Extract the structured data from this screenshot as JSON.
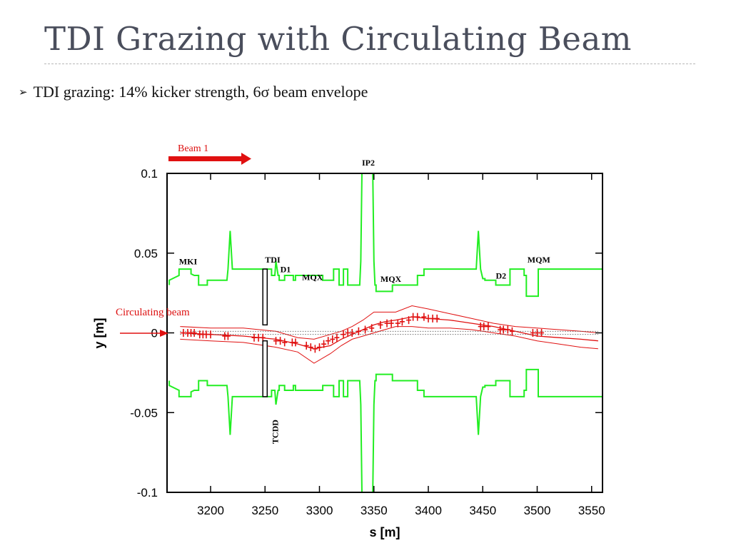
{
  "slide": {
    "title": "TDI Grazing with Circulating Beam",
    "bullet_marker": "➢",
    "bullet_text": "TDI grazing: 14% kicker strength, 6σ beam envelope"
  },
  "colors": {
    "title": "#4a4e5c",
    "aperture": "#22ee22",
    "beam": "#e01010",
    "beam_label": "#dd1111"
  },
  "chart_data": {
    "type": "line",
    "title": "",
    "xlabel": "s [m]",
    "ylabel": "y [m]",
    "xlim": [
      3160,
      3560
    ],
    "ylim": [
      -0.1,
      0.1
    ],
    "x_ticks": [
      3200,
      3250,
      3300,
      3350,
      3400,
      3450,
      3500,
      3550
    ],
    "x_tick_labels": [
      "3200",
      "3250",
      "3300",
      "3350",
      "3400",
      "3450",
      "3500",
      "3550"
    ],
    "y_ticks": [
      0.1,
      0.05,
      0,
      -0.05,
      -0.1
    ],
    "y_tick_labels": [
      "0.1",
      "0.05",
      "0",
      "-0.05",
      "-0.1"
    ],
    "grid": false,
    "element_labels": [
      {
        "text": "MKI",
        "s": 3171,
        "y": 0.043
      },
      {
        "text": "TDI",
        "s": 3250,
        "y": 0.044
      },
      {
        "text": "D1",
        "s": 3264,
        "y": 0.038
      },
      {
        "text": "MQX",
        "s": 3284,
        "y": 0.033
      },
      {
        "text": "IP2",
        "s": 3339,
        "y": 0.105
      },
      {
        "text": "MQX",
        "s": 3356,
        "y": 0.032
      },
      {
        "text": "D2",
        "s": 3462,
        "y": 0.034
      },
      {
        "text": "MQM",
        "s": 3491,
        "y": 0.044
      },
      {
        "text": "TCDD",
        "s": 3262,
        "y": -0.062,
        "rotated": true
      }
    ],
    "annotations": [
      {
        "text": "Beam 1",
        "role": "beam-direction-arrow"
      },
      {
        "text": "Circulating beam",
        "role": "injection-arrow"
      }
    ],
    "series": [
      {
        "role": "aperture-upper",
        "x": [
          3162,
          3162,
          3171,
          3171,
          3182,
          3182,
          3185,
          3189,
          3189,
          3193,
          3197,
          3197,
          3215,
          3216,
          3218,
          3220,
          3220,
          3234,
          3234,
          3246,
          3246,
          3256,
          3256,
          3259,
          3260,
          3262,
          3263,
          3263,
          3268,
          3268,
          3276,
          3276,
          3278,
          3278,
          3303,
          3303,
          3313,
          3313,
          3318,
          3318,
          3322,
          3322,
          3326,
          3326,
          3337,
          3338,
          3339,
          3349,
          3350,
          3351,
          3352,
          3352,
          3367,
          3367,
          3390,
          3390,
          3396,
          3396,
          3402,
          3402,
          3444,
          3446,
          3448,
          3450,
          3452,
          3452,
          3462,
          3462,
          3475,
          3475,
          3488,
          3488,
          3490,
          3490,
          3501,
          3501,
          3510,
          3510,
          3560
        ],
        "y": [
          0.03,
          0.033,
          0.036,
          0.04,
          0.04,
          0.037,
          0.036,
          0.036,
          0.03,
          0.03,
          0.03,
          0.033,
          0.033,
          0.04,
          0.064,
          0.04,
          0.04,
          0.04,
          0.04,
          0.04,
          0.04,
          0.04,
          0.036,
          0.036,
          0.045,
          0.036,
          0.036,
          0.033,
          0.033,
          0.036,
          0.036,
          0.033,
          0.033,
          0.036,
          0.036,
          0.033,
          0.033,
          0.04,
          0.04,
          0.03,
          0.03,
          0.04,
          0.04,
          0.03,
          0.03,
          0.045,
          0.1,
          0.1,
          0.045,
          0.03,
          0.03,
          0.026,
          0.026,
          0.03,
          0.03,
          0.036,
          0.036,
          0.04,
          0.04,
          0.04,
          0.04,
          0.064,
          0.04,
          0.034,
          0.034,
          0.033,
          0.033,
          0.03,
          0.03,
          0.04,
          0.04,
          0.036,
          0.036,
          0.023,
          0.023,
          0.04,
          0.04,
          0.04,
          0.04
        ]
      },
      {
        "role": "aperture-lower",
        "x": [
          3162,
          3162,
          3171,
          3171,
          3182,
          3182,
          3185,
          3189,
          3189,
          3193,
          3197,
          3197,
          3215,
          3216,
          3218,
          3220,
          3220,
          3234,
          3234,
          3246,
          3246,
          3256,
          3256,
          3259,
          3260,
          3262,
          3263,
          3263,
          3268,
          3268,
          3276,
          3276,
          3278,
          3278,
          3303,
          3303,
          3313,
          3313,
          3318,
          3318,
          3322,
          3322,
          3326,
          3326,
          3337,
          3338,
          3339,
          3349,
          3350,
          3351,
          3352,
          3352,
          3367,
          3367,
          3390,
          3390,
          3396,
          3396,
          3402,
          3402,
          3444,
          3446,
          3448,
          3450,
          3452,
          3452,
          3462,
          3462,
          3475,
          3475,
          3488,
          3488,
          3490,
          3490,
          3501,
          3501,
          3510,
          3510,
          3560
        ],
        "y": [
          -0.03,
          -0.033,
          -0.036,
          -0.04,
          -0.04,
          -0.037,
          -0.036,
          -0.036,
          -0.03,
          -0.03,
          -0.03,
          -0.033,
          -0.033,
          -0.04,
          -0.064,
          -0.04,
          -0.04,
          -0.04,
          -0.04,
          -0.04,
          -0.04,
          -0.04,
          -0.036,
          -0.036,
          -0.045,
          -0.036,
          -0.036,
          -0.033,
          -0.033,
          -0.036,
          -0.036,
          -0.033,
          -0.033,
          -0.036,
          -0.036,
          -0.033,
          -0.033,
          -0.04,
          -0.04,
          -0.03,
          -0.03,
          -0.04,
          -0.04,
          -0.03,
          -0.03,
          -0.045,
          -0.1,
          -0.1,
          -0.045,
          -0.03,
          -0.03,
          -0.026,
          -0.026,
          -0.03,
          -0.03,
          -0.036,
          -0.036,
          -0.04,
          -0.04,
          -0.04,
          -0.04,
          -0.064,
          -0.04,
          -0.034,
          -0.034,
          -0.033,
          -0.033,
          -0.03,
          -0.03,
          -0.04,
          -0.04,
          -0.036,
          -0.036,
          -0.023,
          -0.023,
          -0.04,
          -0.04,
          -0.04,
          -0.04
        ]
      },
      {
        "role": "beam-orbit",
        "x": [
          3172,
          3200,
          3230,
          3260,
          3280,
          3295,
          3310,
          3320,
          3330,
          3340,
          3350,
          3360,
          3370,
          3385,
          3400,
          3420,
          3440,
          3460,
          3480,
          3500,
          3520,
          3540,
          3556
        ],
        "y": [
          0.0,
          -0.001,
          -0.002,
          -0.004,
          -0.007,
          -0.01,
          -0.008,
          -0.004,
          -0.001,
          0.002,
          0.005,
          0.007,
          0.008,
          0.01,
          0.009,
          0.008,
          0.006,
          0.004,
          0.001,
          -0.002,
          -0.003,
          -0.004,
          -0.005
        ]
      },
      {
        "role": "beam-envelope-upper",
        "x": [
          3172,
          3200,
          3230,
          3260,
          3280,
          3295,
          3310,
          3320,
          3330,
          3340,
          3350,
          3360,
          3370,
          3385,
          3400,
          3420,
          3440,
          3460,
          3480,
          3500,
          3520,
          3540,
          3556
        ],
        "y": [
          0.004,
          0.003,
          0.003,
          0.001,
          -0.003,
          -0.004,
          -0.001,
          0.001,
          0.004,
          0.008,
          0.013,
          0.013,
          0.013,
          0.017,
          0.015,
          0.012,
          0.009,
          0.006,
          0.004,
          0.003,
          0.002,
          0.001,
          0.0
        ]
      },
      {
        "role": "beam-envelope-lower",
        "x": [
          3172,
          3200,
          3230,
          3260,
          3280,
          3295,
          3310,
          3320,
          3330,
          3340,
          3350,
          3360,
          3370,
          3385,
          3400,
          3420,
          3440,
          3460,
          3480,
          3500,
          3520,
          3540,
          3556
        ],
        "y": [
          -0.004,
          -0.005,
          -0.006,
          -0.009,
          -0.012,
          -0.019,
          -0.013,
          -0.008,
          -0.004,
          -0.002,
          0.0,
          0.002,
          0.004,
          0.004,
          0.003,
          0.003,
          0.002,
          0.0,
          -0.002,
          -0.005,
          -0.007,
          -0.009,
          -0.01
        ]
      },
      {
        "role": "reference-upper-dotted",
        "x": [
          3172,
          3556
        ],
        "y": [
          0.001,
          0.001
        ]
      },
      {
        "role": "reference-lower-dotted",
        "x": [
          3172,
          3556
        ],
        "y": [
          -0.001,
          -0.001
        ]
      },
      {
        "role": "bpm-markers",
        "x": [
          3175,
          3179,
          3182,
          3185,
          3190,
          3193,
          3196,
          3200,
          3213,
          3216,
          3240,
          3244,
          3248,
          3260,
          3264,
          3268,
          3275,
          3278,
          3288,
          3292,
          3296,
          3300,
          3304,
          3308,
          3312,
          3316,
          3322,
          3326,
          3330,
          3336,
          3342,
          3348,
          3356,
          3362,
          3366,
          3372,
          3376,
          3382,
          3386,
          3390,
          3396,
          3400,
          3404,
          3408,
          3448,
          3451,
          3455,
          3466,
          3469,
          3473,
          3477,
          3496,
          3500,
          3504
        ],
        "y": [
          0.0,
          0.0,
          0.0,
          0.0,
          -0.001,
          -0.001,
          -0.001,
          -0.001,
          -0.002,
          -0.002,
          -0.003,
          -0.003,
          -0.003,
          -0.005,
          -0.005,
          -0.006,
          -0.006,
          -0.006,
          -0.008,
          -0.009,
          -0.01,
          -0.009,
          -0.007,
          -0.005,
          -0.004,
          -0.003,
          -0.001,
          0.0,
          0.0,
          0.001,
          0.002,
          0.003,
          0.005,
          0.006,
          0.006,
          0.006,
          0.007,
          0.008,
          0.01,
          0.01,
          0.01,
          0.009,
          0.009,
          0.009,
          0.004,
          0.004,
          0.004,
          0.002,
          0.002,
          0.002,
          0.001,
          0.0,
          0.0,
          0.0
        ]
      }
    ],
    "collimators": [
      {
        "name": "TDI",
        "s_from": 3248,
        "s_to": 3252,
        "y_from": 0.04,
        "y_to": 0.005
      },
      {
        "name": "TCDD",
        "s_from": 3248,
        "s_to": 3252,
        "y_from": -0.005,
        "y_to": -0.04
      }
    ]
  }
}
